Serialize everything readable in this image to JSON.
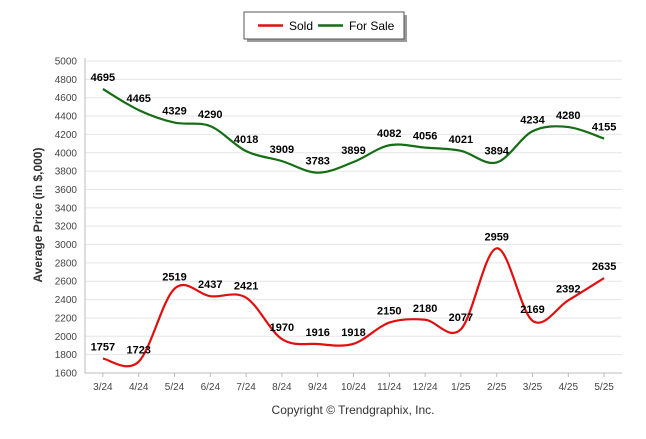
{
  "chart_data": {
    "type": "line",
    "title": "",
    "xlabel": "",
    "ylabel": "Average Price (in $,000)",
    "categories": [
      "3/24",
      "4/24",
      "5/24",
      "6/24",
      "7/24",
      "8/24",
      "9/24",
      "10/24",
      "11/24",
      "12/24",
      "1/25",
      "2/25",
      "3/25",
      "4/25",
      "5/25"
    ],
    "yticks": [
      1600,
      1800,
      2000,
      2200,
      2400,
      2600,
      2800,
      3000,
      3200,
      3400,
      3600,
      3800,
      4000,
      4200,
      4400,
      4600,
      4800,
      5000
    ],
    "ylim": [
      1600,
      5000
    ],
    "grid": true,
    "legend_position": "top-center",
    "series": [
      {
        "name": "Sold",
        "color": "#e01010",
        "values": [
          1757,
          1723,
          2519,
          2437,
          2421,
          1970,
          1916,
          1918,
          2150,
          2180,
          2077,
          2959,
          2169,
          2392,
          2635
        ]
      },
      {
        "name": "For Sale",
        "color": "#156d15",
        "values": [
          4695,
          4465,
          4329,
          4290,
          4018,
          3909,
          3783,
          3899,
          4082,
          4056,
          4021,
          3894,
          4234,
          4280,
          4155
        ]
      }
    ],
    "footer": "Copyright © Trendgraphix, Inc."
  }
}
